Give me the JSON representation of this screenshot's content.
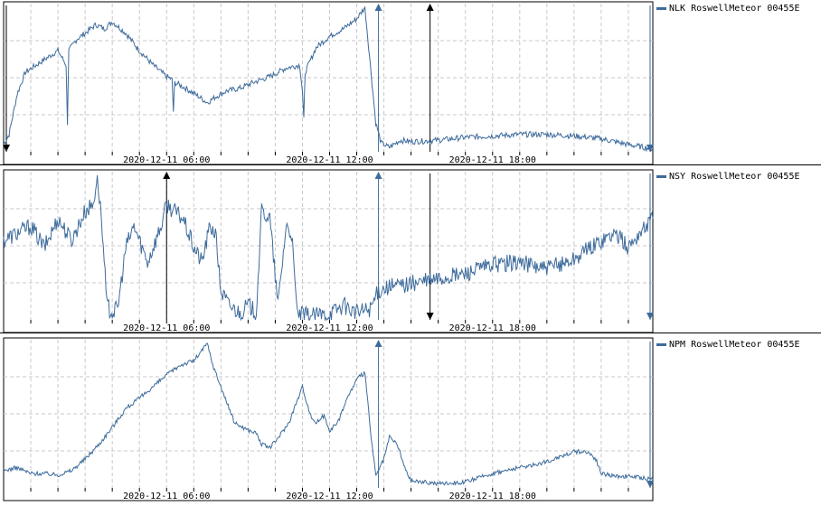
{
  "colors": {
    "series": "#3d6b9b",
    "marker_black": "#000000",
    "grid": "#c8c8c8"
  },
  "chart_data": [
    {
      "type": "line",
      "legend": "NLK RoswellMeteor 00455E",
      "x_ticks": [
        {
          "hour": 6,
          "label": "2020-12-11 06:00"
        },
        {
          "hour": 12,
          "label": "2020-12-11 12:00"
        },
        {
          "hour": 18,
          "label": "2020-12-11 18:00"
        }
      ],
      "xlim": [
        0,
        23.9
      ],
      "ylim": [
        0,
        100
      ],
      "grid": true,
      "legend_position": "right",
      "series": [
        {
          "hours": [
            0,
            0.2,
            0.5,
            0.8,
            1.2,
            1.6,
            2,
            2.3,
            2.35,
            2.4,
            2.7,
            3,
            3.4,
            3.7,
            4,
            4.5,
            5,
            5.5,
            6,
            6.2,
            6.25,
            6.3,
            6.7,
            7.2,
            7.5,
            7.8,
            8.2,
            8.7,
            9.2,
            9.8,
            10.4,
            10.9,
            11,
            11.05,
            11.1,
            11.5,
            12,
            12.5,
            13,
            13.3,
            13.5,
            13.7,
            13.9,
            14.2,
            14.6,
            15,
            16,
            17,
            18,
            19,
            20,
            21,
            22,
            23,
            23.9
          ],
          "values": [
            5,
            12,
            40,
            55,
            60,
            65,
            70,
            60,
            20,
            70,
            78,
            82,
            88,
            85,
            90,
            82,
            70,
            60,
            52,
            50,
            28,
            48,
            44,
            38,
            34,
            38,
            42,
            44,
            48,
            52,
            58,
            60,
            42,
            22,
            55,
            72,
            80,
            85,
            92,
            100,
            60,
            20,
            6,
            3,
            8,
            7,
            8,
            10,
            11,
            12,
            12,
            11,
            9,
            5,
            2
          ]
        }
      ],
      "markers": [
        {
          "hour": 0.1,
          "direction": "down",
          "color": "black"
        },
        {
          "hour": 13.8,
          "direction": "up",
          "color": "blue"
        },
        {
          "hour": 15.7,
          "direction": "up",
          "color": "black"
        },
        {
          "hour": 23.8,
          "direction": "down",
          "color": "blue"
        }
      ]
    },
    {
      "type": "line",
      "legend": "NSY RoswellMeteor 00455E",
      "x_ticks": [
        {
          "hour": 6,
          "label": "2020-12-11 06:00"
        },
        {
          "hour": 12,
          "label": "2020-12-11 12:00"
        },
        {
          "hour": 18,
          "label": "2020-12-11 18:00"
        }
      ],
      "xlim": [
        0,
        23.9
      ],
      "ylim": [
        0,
        100
      ],
      "grid": true,
      "legend_position": "right",
      "series": [
        {
          "hours": [
            0,
            0.5,
            1,
            1.5,
            2,
            2.5,
            3,
            3.3,
            3.45,
            3.6,
            3.8,
            4,
            4.2,
            4.5,
            4.8,
            5,
            5.3,
            5.5,
            5.8,
            6,
            6.3,
            6.6,
            7,
            7.3,
            7.6,
            7.8,
            8,
            8.3,
            8.7,
            9,
            9.3,
            9.5,
            9.8,
            10.1,
            10.4,
            10.6,
            10.8,
            11,
            11.5,
            12,
            12.5,
            13,
            13.5,
            13.8,
            14,
            15,
            16,
            17,
            18,
            19,
            20,
            21,
            22,
            22.5,
            23,
            23.5,
            23.9
          ],
          "values": [
            55,
            60,
            65,
            50,
            70,
            55,
            75,
            80,
            100,
            70,
            10,
            5,
            8,
            50,
            65,
            55,
            40,
            50,
            65,
            80,
            75,
            70,
            50,
            40,
            65,
            60,
            20,
            10,
            5,
            10,
            5,
            75,
            70,
            10,
            65,
            60,
            5,
            3,
            3,
            4,
            10,
            5,
            8,
            20,
            22,
            25,
            28,
            32,
            38,
            40,
            35,
            42,
            55,
            60,
            50,
            62,
            70
          ]
        }
      ],
      "markers": [
        {
          "hour": 6,
          "direction": "up",
          "color": "black"
        },
        {
          "hour": 13.8,
          "direction": "up",
          "color": "blue"
        },
        {
          "hour": 15.7,
          "direction": "down",
          "color": "black"
        },
        {
          "hour": 23.8,
          "direction": "down",
          "color": "blue"
        }
      ]
    },
    {
      "type": "line",
      "legend": "NPM RoswellMeteor 00455E",
      "x_ticks": [
        {
          "hour": 6,
          "label": "2020-12-11 06:00"
        },
        {
          "hour": 12,
          "label": "2020-12-11 12:00"
        },
        {
          "hour": 18,
          "label": "2020-12-11 18:00"
        }
      ],
      "xlim": [
        0,
        23.9
      ],
      "ylim": [
        0,
        100
      ],
      "grid": true,
      "legend_position": "right",
      "series": [
        {
          "hours": [
            0,
            0.5,
            1,
            1.5,
            2,
            2.5,
            3,
            3.5,
            4,
            4.5,
            5,
            5.5,
            6,
            6.5,
            7,
            7.3,
            7.5,
            7.7,
            8,
            8.5,
            9,
            9.3,
            9.5,
            9.8,
            10,
            10.5,
            10.8,
            11,
            11.3,
            11.5,
            11.8,
            12,
            12.3,
            12.6,
            13,
            13.3,
            13.5,
            13.7,
            14,
            14.2,
            14.5,
            14.8,
            15,
            16,
            17,
            18,
            19,
            20,
            20.5,
            21,
            21.5,
            21.8,
            22,
            22.5,
            23,
            23.9
          ],
          "values": [
            12,
            14,
            10,
            10,
            9,
            12,
            20,
            30,
            42,
            55,
            62,
            70,
            78,
            85,
            88,
            95,
            100,
            85,
            70,
            45,
            40,
            38,
            30,
            28,
            32,
            45,
            60,
            70,
            50,
            45,
            50,
            40,
            45,
            60,
            75,
            80,
            40,
            8,
            20,
            35,
            30,
            12,
            5,
            3,
            4,
            10,
            14,
            18,
            22,
            25,
            25,
            20,
            10,
            8,
            8,
            6
          ]
        }
      ],
      "markers": [
        {
          "hour": 13.8,
          "direction": "up",
          "color": "blue"
        },
        {
          "hour": 23.8,
          "direction": "down",
          "color": "blue"
        }
      ]
    }
  ]
}
